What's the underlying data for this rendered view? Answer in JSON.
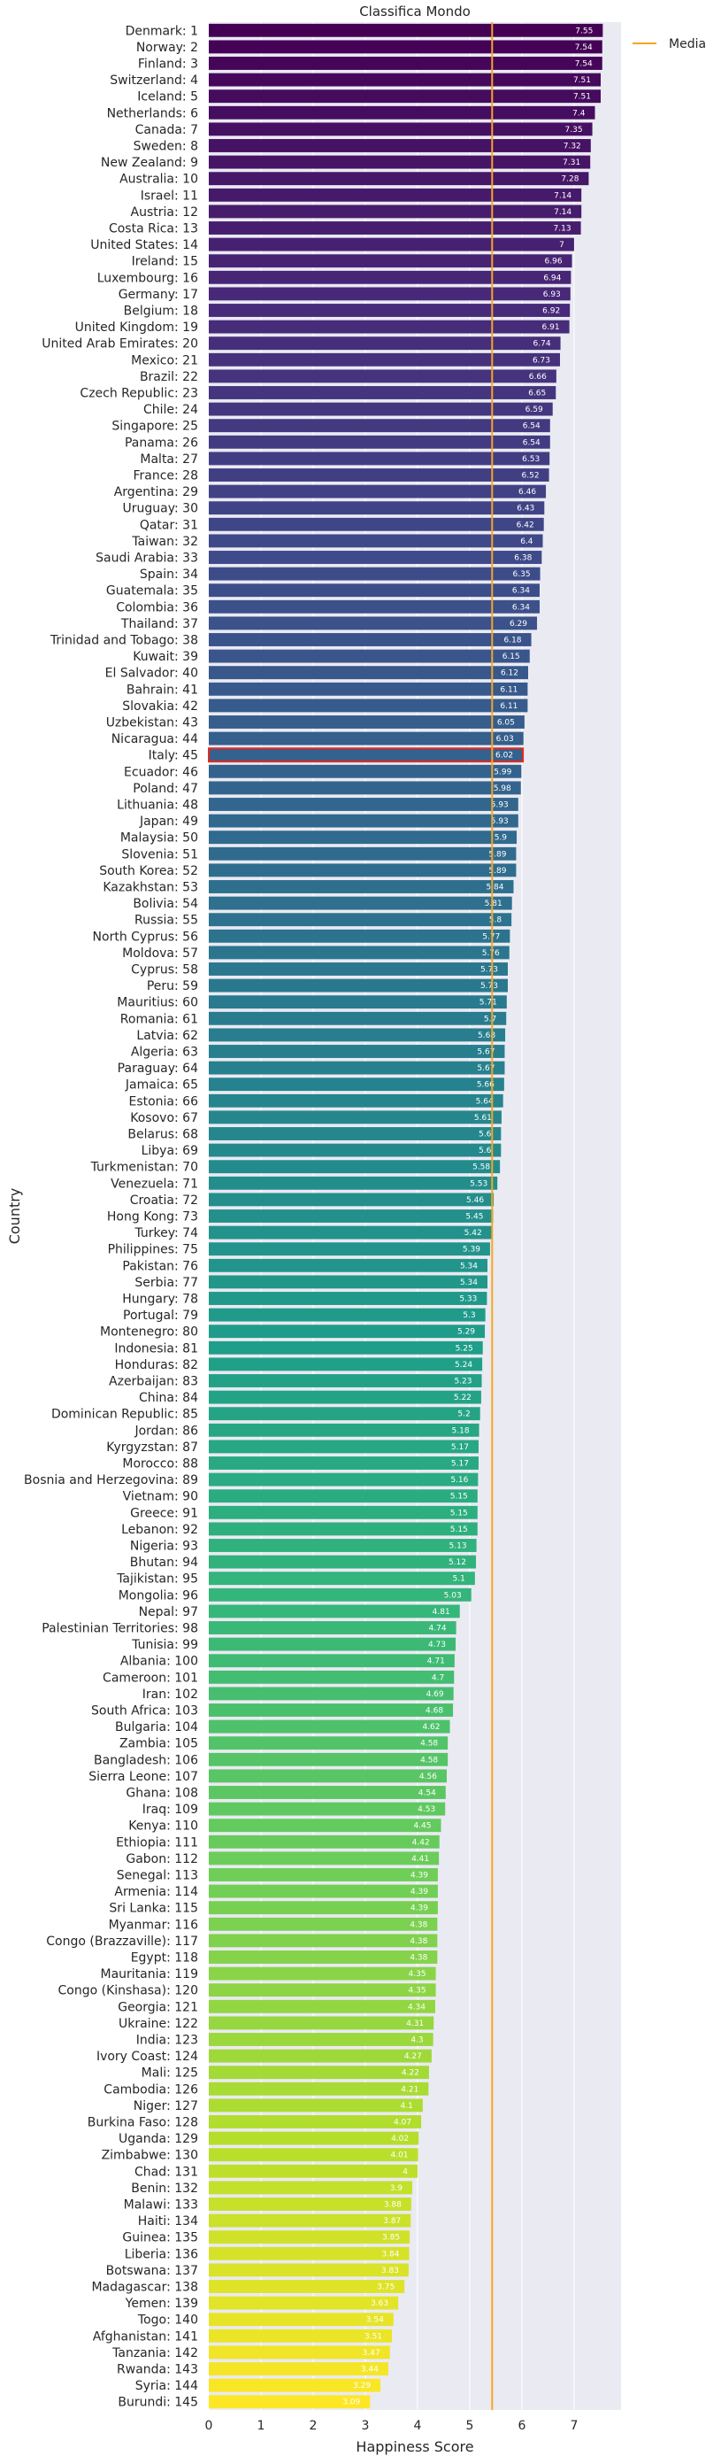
{
  "chart_data": {
    "type": "bar",
    "orientation": "horizontal",
    "title": "Classifica Mondo",
    "xlabel": "Happiness Score",
    "ylabel": "Country",
    "xlim": [
      0,
      7.9
    ],
    "xticks": [
      "0",
      "1",
      "2",
      "3",
      "4",
      "5",
      "6",
      "7"
    ],
    "grid": true,
    "legend": {
      "placement": "top-right",
      "entries": [
        "Media"
      ]
    },
    "reference_line": {
      "label": "Media",
      "value": 5.43,
      "color": "#f5a623"
    },
    "highlight_category": "Italy: 45",
    "highlight_color": "#e8281e",
    "colormap": "viridis",
    "categories": [
      "Denmark: 1",
      "Norway: 2",
      "Finland: 3",
      "Switzerland: 4",
      "Iceland: 5",
      "Netherlands: 6",
      "Canada: 7",
      "Sweden: 8",
      "New Zealand: 9",
      "Australia: 10",
      "Israel: 11",
      "Austria: 12",
      "Costa Rica: 13",
      "United States: 14",
      "Ireland: 15",
      "Luxembourg: 16",
      "Germany: 17",
      "Belgium: 18",
      "United Kingdom: 19",
      "United Arab Emirates: 20",
      "Mexico: 21",
      "Brazil: 22",
      "Czech Republic: 23",
      "Chile: 24",
      "Singapore: 25",
      "Panama: 26",
      "Malta: 27",
      "France: 28",
      "Argentina: 29",
      "Uruguay: 30",
      "Qatar: 31",
      "Taiwan: 32",
      "Saudi Arabia: 33",
      "Spain: 34",
      "Guatemala: 35",
      "Colombia: 36",
      "Thailand: 37",
      "Trinidad and Tobago: 38",
      "Kuwait: 39",
      "El Salvador: 40",
      "Bahrain: 41",
      "Slovakia: 42",
      "Uzbekistan: 43",
      "Nicaragua: 44",
      "Italy: 45",
      "Ecuador: 46",
      "Poland: 47",
      "Lithuania: 48",
      "Japan: 49",
      "Malaysia: 50",
      "Slovenia: 51",
      "South Korea: 52",
      "Kazakhstan: 53",
      "Bolivia: 54",
      "Russia: 55",
      "North Cyprus: 56",
      "Moldova: 57",
      "Cyprus: 58",
      "Peru: 59",
      "Mauritius: 60",
      "Romania: 61",
      "Latvia: 62",
      "Algeria: 63",
      "Paraguay: 64",
      "Jamaica: 65",
      "Estonia: 66",
      "Kosovo: 67",
      "Belarus: 68",
      "Libya: 69",
      "Turkmenistan: 70",
      "Venezuela: 71",
      "Croatia: 72",
      "Hong Kong: 73",
      "Turkey: 74",
      "Philippines: 75",
      "Pakistan: 76",
      "Serbia: 77",
      "Hungary: 78",
      "Portugal: 79",
      "Montenegro: 80",
      "Indonesia: 81",
      "Honduras: 82",
      "Azerbaijan: 83",
      "China: 84",
      "Dominican Republic: 85",
      "Jordan: 86",
      "Kyrgyzstan: 87",
      "Morocco: 88",
      "Bosnia and Herzegovina: 89",
      "Vietnam: 90",
      "Greece: 91",
      "Lebanon: 92",
      "Nigeria: 93",
      "Bhutan: 94",
      "Tajikistan: 95",
      "Mongolia: 96",
      "Nepal: 97",
      "Palestinian Territories: 98",
      "Tunisia: 99",
      "Albania: 100",
      "Cameroon: 101",
      "Iran: 102",
      "South Africa: 103",
      "Bulgaria: 104",
      "Zambia: 105",
      "Bangladesh: 106",
      "Sierra Leone: 107",
      "Ghana: 108",
      "Iraq: 109",
      "Kenya: 110",
      "Ethiopia: 111",
      "Gabon: 112",
      "Senegal: 113",
      "Armenia: 114",
      "Sri Lanka: 115",
      "Myanmar: 116",
      "Congo (Brazzaville): 117",
      "Egypt: 118",
      "Mauritania: 119",
      "Congo (Kinshasa): 120",
      "Georgia: 121",
      "Ukraine: 122",
      "India: 123",
      "Ivory Coast: 124",
      "Mali: 125",
      "Cambodia: 126",
      "Niger: 127",
      "Burkina Faso: 128",
      "Uganda: 129",
      "Zimbabwe: 130",
      "Chad: 131",
      "Benin: 132",
      "Malawi: 133",
      "Haiti: 134",
      "Guinea: 135",
      "Liberia: 136",
      "Botswana: 137",
      "Madagascar: 138",
      "Yemen: 139",
      "Togo: 140",
      "Afghanistan: 141",
      "Tanzania: 142",
      "Rwanda: 143",
      "Syria: 144",
      "Burundi: 145"
    ],
    "values": [
      7.55,
      7.54,
      7.54,
      7.51,
      7.51,
      7.4,
      7.35,
      7.32,
      7.31,
      7.28,
      7.14,
      7.14,
      7.13,
      7,
      6.96,
      6.94,
      6.93,
      6.92,
      6.91,
      6.74,
      6.73,
      6.66,
      6.65,
      6.59,
      6.54,
      6.54,
      6.53,
      6.52,
      6.46,
      6.43,
      6.42,
      6.4,
      6.38,
      6.35,
      6.34,
      6.34,
      6.29,
      6.18,
      6.15,
      6.12,
      6.11,
      6.11,
      6.05,
      6.03,
      6.02,
      5.99,
      5.98,
      5.93,
      5.93,
      5.9,
      5.89,
      5.89,
      5.84,
      5.81,
      5.8,
      5.77,
      5.76,
      5.73,
      5.73,
      5.71,
      5.7,
      5.68,
      5.67,
      5.67,
      5.66,
      5.64,
      5.61,
      5.6,
      5.6,
      5.58,
      5.53,
      5.46,
      5.45,
      5.42,
      5.39,
      5.34,
      5.34,
      5.33,
      5.3,
      5.29,
      5.25,
      5.24,
      5.23,
      5.22,
      5.2,
      5.18,
      5.17,
      5.17,
      5.16,
      5.15,
      5.15,
      5.15,
      5.13,
      5.12,
      5.1,
      5.03,
      4.81,
      4.74,
      4.73,
      4.71,
      4.7,
      4.69,
      4.68,
      4.62,
      4.58,
      4.58,
      4.56,
      4.54,
      4.53,
      4.45,
      4.42,
      4.41,
      4.39,
      4.39,
      4.39,
      4.38,
      4.38,
      4.38,
      4.35,
      4.35,
      4.34,
      4.31,
      4.3,
      4.27,
      4.22,
      4.21,
      4.1,
      4.07,
      4.02,
      4.01,
      4,
      3.9,
      3.88,
      3.87,
      3.85,
      3.84,
      3.83,
      3.75,
      3.63,
      3.54,
      3.51,
      3.47,
      3.44,
      3.29,
      3.09
    ],
    "value_labels": [
      "7.55",
      "7.54",
      "7.54",
      "7.51",
      "7.51",
      "7.4",
      "7.35",
      "7.32",
      "7.31",
      "7.28",
      "7.14",
      "7.14",
      "7.13",
      "7",
      "6.96",
      "6.94",
      "6.93",
      "6.92",
      "6.91",
      "6.74",
      "6.73",
      "6.66",
      "6.65",
      "6.59",
      "6.54",
      "6.54",
      "6.53",
      "6.52",
      "6.46",
      "6.43",
      "6.42",
      "6.4",
      "6.38",
      "6.35",
      "6.34",
      "6.34",
      "6.29",
      "6.18",
      "6.15",
      "6.12",
      "6.11",
      "6.11",
      "6.05",
      "6.03",
      "6.02",
      "5.99",
      "5.98",
      "5.93",
      "5.93",
      "5.9",
      "5.89",
      "5.89",
      "5.84",
      "5.81",
      "5.8",
      "5.77",
      "5.76",
      "5.73",
      "5.73",
      "5.71",
      "5.7",
      "5.68",
      "5.67",
      "5.67",
      "5.66",
      "5.64",
      "5.61",
      "5.6",
      "5.6",
      "5.58",
      "5.53",
      "5.46",
      "5.45",
      "5.42",
      "5.39",
      "5.34",
      "5.34",
      "5.33",
      "5.3",
      "5.29",
      "5.25",
      "5.24",
      "5.23",
      "5.22",
      "5.2",
      "5.18",
      "5.17",
      "5.17",
      "5.16",
      "5.15",
      "5.15",
      "5.15",
      "5.13",
      "5.12",
      "5.1",
      "5.03",
      "4.81",
      "4.74",
      "4.73",
      "4.71",
      "4.7",
      "4.69",
      "4.68",
      "4.62",
      "4.58",
      "4.58",
      "4.56",
      "4.54",
      "4.53",
      "4.45",
      "4.42",
      "4.41",
      "4.39",
      "4.39",
      "4.39",
      "4.38",
      "4.38",
      "4.38",
      "4.35",
      "4.35",
      "4.34",
      "4.31",
      "4.3",
      "4.27",
      "4.22",
      "4.21",
      "4.1",
      "4.07",
      "4.02",
      "4.01",
      "4",
      "3.9",
      "3.88",
      "3.87",
      "3.85",
      "3.84",
      "3.83",
      "3.75",
      "3.63",
      "3.54",
      "3.51",
      "3.47",
      "3.44",
      "3.29",
      "3.09"
    ]
  }
}
